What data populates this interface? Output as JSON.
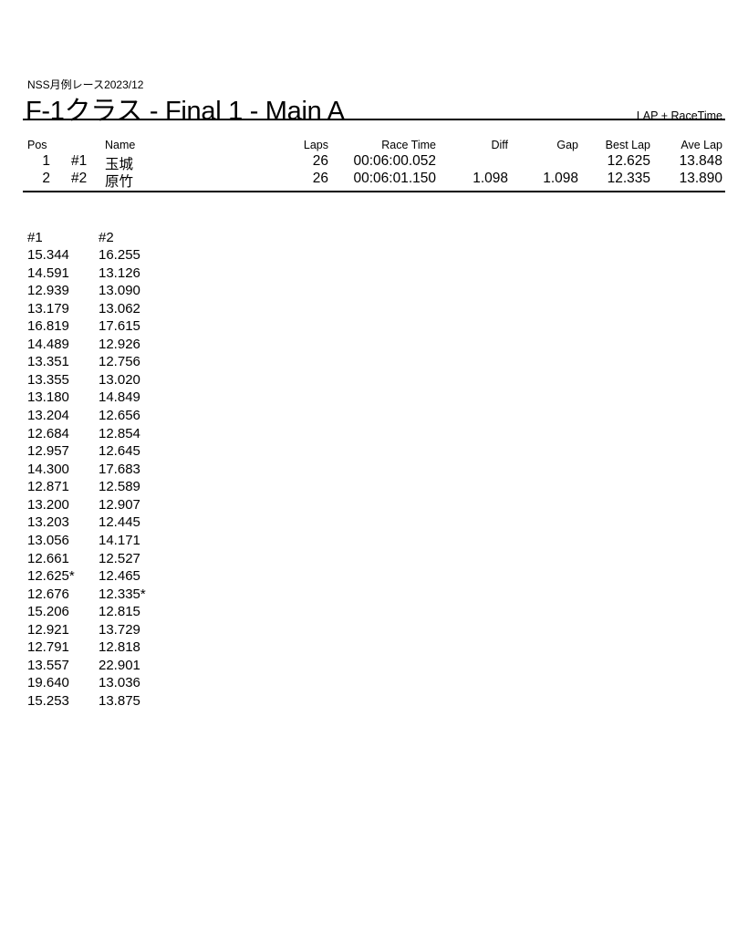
{
  "header": {
    "subtitle": "NSS月例レース2023/12",
    "title": "F-1クラス  -  Final 1  -  Main A",
    "mode": "LAP + RaceTime"
  },
  "results": {
    "columns": [
      "Pos",
      "Name",
      "Laps",
      "Race Time",
      "Diff",
      "Gap",
      "Best Lap",
      "Ave Lap"
    ],
    "rows": [
      {
        "pos": "1",
        "num": "#1",
        "name": "玉城",
        "laps": "26",
        "race_time": "00:06:00.052",
        "diff": "",
        "gap": "",
        "best_lap": "12.625",
        "ave_lap": "13.848"
      },
      {
        "pos": "2",
        "num": "#2",
        "name": "原竹",
        "laps": "26",
        "race_time": "00:06:01.150",
        "diff": "1.098",
        "gap": "1.098",
        "best_lap": "12.335",
        "ave_lap": "13.890"
      }
    ]
  },
  "laps": {
    "headers": [
      "#1",
      "#2"
    ],
    "col1": [
      "15.344",
      "14.591",
      "12.939",
      "13.179",
      "16.819",
      "14.489",
      "13.351",
      "13.355",
      "13.180",
      "13.204",
      "12.684",
      "12.957",
      "14.300",
      "12.871",
      "13.200",
      "13.203",
      "13.056",
      "12.661",
      "12.625*",
      "12.676",
      "15.206",
      "12.921",
      "12.791",
      "13.557",
      "19.640",
      "15.253"
    ],
    "col2": [
      "16.255",
      "13.126",
      "13.090",
      "13.062",
      "17.615",
      "12.926",
      "12.756",
      "13.020",
      "14.849",
      "12.656",
      "12.854",
      "12.645",
      "17.683",
      "12.589",
      "12.907",
      "12.445",
      "14.171",
      "12.527",
      "12.465",
      "12.335*",
      "12.815",
      "13.729",
      "12.818",
      "22.901",
      "13.036",
      "13.875"
    ]
  }
}
